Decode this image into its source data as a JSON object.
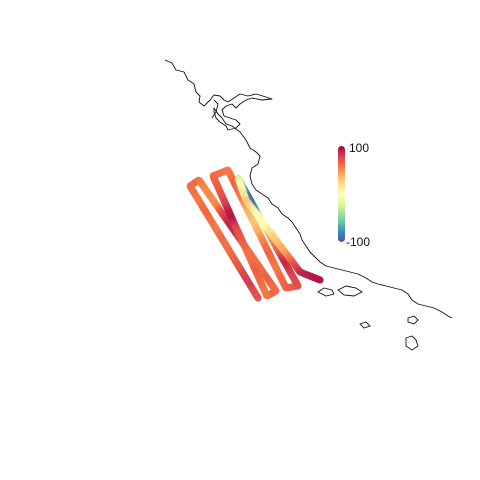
{
  "map": {
    "colorbar": {
      "max_label": "100",
      "min_label": "-100",
      "max": 100,
      "min": -100,
      "colors": [
        "#9e0142",
        "#d53e4f",
        "#f46d43",
        "#fdae61",
        "#fee08b",
        "#ffffbf",
        "#e6f598",
        "#abdda4",
        "#66c2a5",
        "#3288bd",
        "#5e4fa2"
      ]
    },
    "track_values": [
      70,
      72,
      74,
      78,
      80,
      76,
      72,
      68,
      64,
      62,
      60,
      58,
      62,
      60,
      56,
      58,
      60,
      62,
      60,
      58,
      56,
      60,
      58,
      62,
      56,
      54,
      50,
      52,
      50,
      54,
      70,
      80,
      85,
      88,
      86,
      80,
      70,
      64,
      62,
      60,
      58,
      62,
      60,
      64,
      66,
      62,
      60,
      64,
      58,
      56,
      60,
      62,
      64,
      66,
      62,
      60,
      58,
      62,
      66,
      70,
      72,
      78,
      90,
      92,
      88,
      80,
      74,
      70,
      66,
      64,
      62,
      60,
      58,
      56,
      60,
      64,
      60,
      58,
      54,
      46,
      40,
      36,
      30,
      34,
      40,
      50,
      56,
      60,
      64,
      60,
      58,
      56,
      60,
      62,
      64,
      66,
      70,
      74,
      76,
      78,
      84,
      88,
      82,
      70,
      60,
      50,
      40,
      30,
      10,
      -10,
      -40,
      -70,
      -85,
      -90,
      -80,
      -60,
      -40,
      -20,
      0,
      10,
      20,
      30,
      20,
      10,
      0,
      -5,
      5,
      15,
      25,
      30,
      35,
      40,
      50,
      60,
      70,
      80,
      88,
      90,
      92,
      94
    ]
  }
}
